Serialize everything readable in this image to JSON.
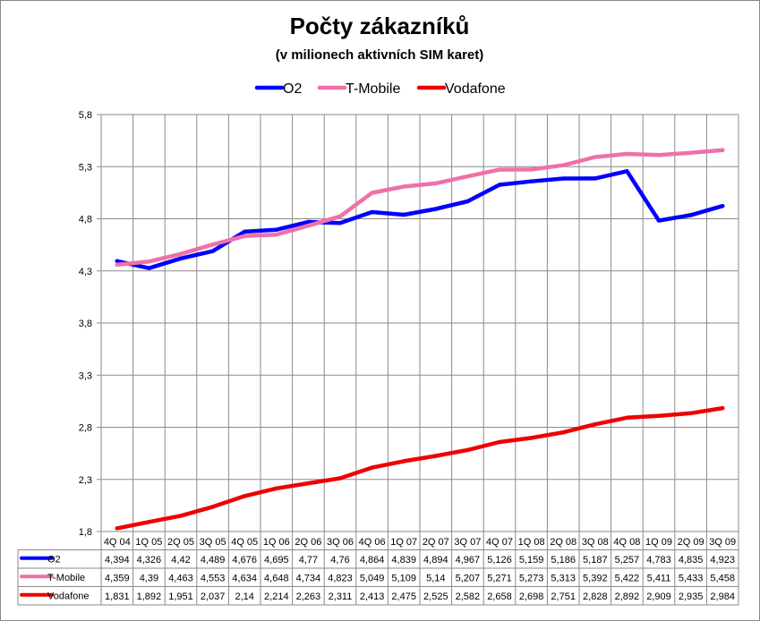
{
  "chart_data": {
    "type": "line",
    "title": "Počty zákazníků",
    "subtitle": "(v milionech aktivních SIM karet)",
    "categories": [
      "4Q 04",
      "1Q 05",
      "2Q 05",
      "3Q 05",
      "4Q 05",
      "1Q 06",
      "2Q 06",
      "3Q 06",
      "4Q 06",
      "1Q 07",
      "2Q 07",
      "3Q 07",
      "4Q 07",
      "1Q 08",
      "2Q 08",
      "3Q 08",
      "4Q 08",
      "1Q 09",
      "2Q 09",
      "3Q 09"
    ],
    "yticks": [
      "5,8",
      "5,3",
      "4,8",
      "4,3",
      "3,8",
      "3,3",
      "2,8",
      "2,3",
      "1,8"
    ],
    "ylim": [
      1.8,
      5.8
    ],
    "grid": true,
    "legend_position": "top",
    "series": [
      {
        "name": "O2",
        "color": "#0000ff",
        "values": [
          4.394,
          4.326,
          4.42,
          4.489,
          4.676,
          4.695,
          4.77,
          4.76,
          4.864,
          4.839,
          4.894,
          4.967,
          5.126,
          5.159,
          5.186,
          5.187,
          5.257,
          4.783,
          4.835,
          4.923
        ],
        "labels": [
          "4,394",
          "4,326",
          "4,42",
          "4,489",
          "4,676",
          "4,695",
          "4,77",
          "4,76",
          "4,864",
          "4,839",
          "4,894",
          "4,967",
          "5,126",
          "5,159",
          "5,186",
          "5,187",
          "5,257",
          "4,783",
          "4,835",
          "4,923"
        ]
      },
      {
        "name": "T-Mobile",
        "color": "#f070a8",
        "values": [
          4.359,
          4.39,
          4.463,
          4.553,
          4.634,
          4.648,
          4.734,
          4.823,
          5.049,
          5.109,
          5.14,
          5.207,
          5.271,
          5.273,
          5.313,
          5.392,
          5.422,
          5.411,
          5.433,
          5.458
        ],
        "labels": [
          "4,359",
          "4,39",
          "4,463",
          "4,553",
          "4,634",
          "4,648",
          "4,734",
          "4,823",
          "5,049",
          "5,109",
          "5,14",
          "5,207",
          "5,271",
          "5,273",
          "5,313",
          "5,392",
          "5,422",
          "5,411",
          "5,433",
          "5,458"
        ]
      },
      {
        "name": "Vodafone",
        "color": "#ee0000",
        "values": [
          1.831,
          1.892,
          1.951,
          2.037,
          2.14,
          2.214,
          2.263,
          2.311,
          2.413,
          2.475,
          2.525,
          2.582,
          2.658,
          2.698,
          2.751,
          2.828,
          2.892,
          2.909,
          2.935,
          2.984
        ],
        "labels": [
          "1,831",
          "1,892",
          "1,951",
          "2,037",
          "2,14",
          "2,214",
          "2,263",
          "2,311",
          "2,413",
          "2,475",
          "2,525",
          "2,582",
          "2,658",
          "2,698",
          "2,751",
          "2,828",
          "2,892",
          "2,909",
          "2,935",
          "2,984"
        ]
      }
    ]
  }
}
